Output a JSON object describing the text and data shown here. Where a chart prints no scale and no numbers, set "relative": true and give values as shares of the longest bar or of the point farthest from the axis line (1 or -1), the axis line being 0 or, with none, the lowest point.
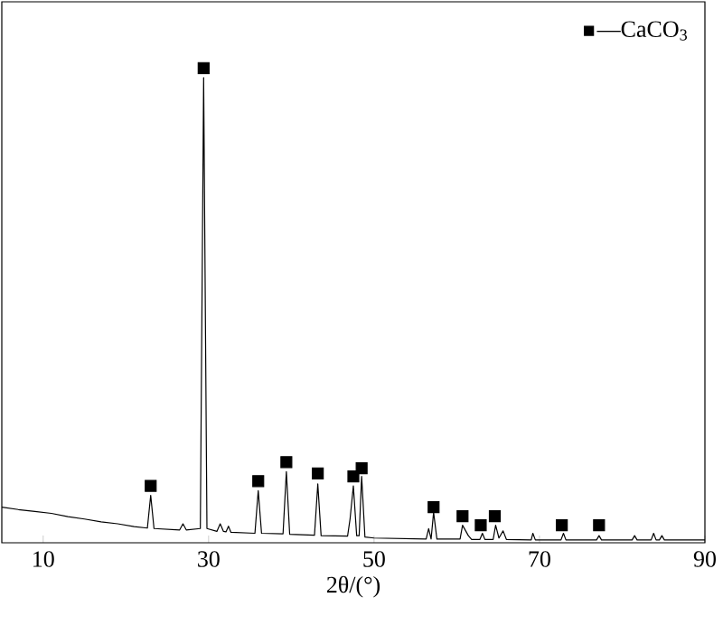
{
  "chart_data": {
    "type": "line",
    "relative": true,
    "xlabel": "2θ/(°)",
    "xlim": [
      5,
      90
    ],
    "xticks": [
      10,
      30,
      50,
      70,
      90
    ],
    "legend": "top right",
    "series": [
      {
        "color": "#000000",
        "marker": "none",
        "x": [
          5,
          7,
          9,
          11,
          13,
          15,
          17,
          19,
          21,
          22.6,
          23.0,
          23.4,
          26.5,
          26.9,
          27.3,
          29.0,
          29.4,
          29.8,
          31.0,
          31.4,
          31.8,
          32.1,
          32.4,
          32.7,
          35.6,
          36.0,
          36.4,
          39.0,
          39.4,
          39.8,
          42.8,
          43.2,
          43.6,
          46.8,
          47.1,
          47.5,
          47.9,
          48.2,
          48.5,
          48.9,
          50,
          56.3,
          56.6,
          56.9,
          57.2,
          57.6,
          60.4,
          60.7,
          61.4,
          61.8,
          62.8,
          63.1,
          63.4,
          64.4,
          64.7,
          65.1,
          65.6,
          66.0,
          69.0,
          69.2,
          69.5,
          72.6,
          72.9,
          73.2,
          76.9,
          77.2,
          77.5,
          81.2,
          81.5,
          81.8,
          83.5,
          83.8,
          84.1,
          84.5,
          84.8,
          85.1,
          90
        ],
        "values": [
          0.075,
          0.07,
          0.066,
          0.062,
          0.055,
          0.05,
          0.044,
          0.04,
          0.034,
          0.031,
          0.1,
          0.03,
          0.027,
          0.04,
          0.027,
          0.03,
          0.98,
          0.03,
          0.024,
          0.04,
          0.024,
          0.023,
          0.035,
          0.022,
          0.02,
          0.11,
          0.02,
          0.019,
          0.15,
          0.018,
          0.016,
          0.124,
          0.015,
          0.014,
          0.05,
          0.12,
          0.015,
          0.015,
          0.14,
          0.012,
          0.01,
          0.008,
          0.03,
          0.008,
          0.064,
          0.008,
          0.008,
          0.037,
          0.015,
          0.007,
          0.007,
          0.02,
          0.007,
          0.007,
          0.037,
          0.01,
          0.025,
          0.007,
          0.006,
          0.02,
          0.006,
          0.006,
          0.02,
          0.006,
          0.006,
          0.015,
          0.006,
          0.006,
          0.015,
          0.006,
          0.006,
          0.02,
          0.006,
          0.006,
          0.015,
          0.006,
          0.006
        ]
      },
      {
        "type": "scatter",
        "name": "—CaCO$_{3}$",
        "color": "#000000",
        "marker": "square",
        "x": [
          23.0,
          29.4,
          36.0,
          39.4,
          43.2,
          47.5,
          48.5,
          57.2,
          60.7,
          62.9,
          64.6,
          72.7,
          77.2
        ],
        "values": [
          0.12,
          1.0,
          0.13,
          0.17,
          0.146,
          0.14,
          0.157,
          0.075,
          0.056,
          0.037,
          0.056,
          0.037,
          0.037
        ]
      }
    ]
  }
}
